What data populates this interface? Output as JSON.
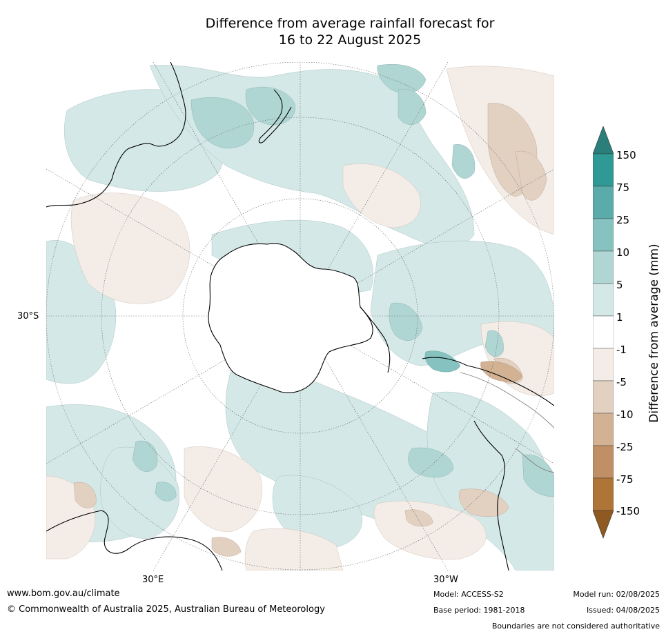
{
  "title": {
    "line1": "Difference from average rainfall forecast for",
    "line2": "16 to 22 August 2025"
  },
  "map": {
    "projection": "south-polar-stereographic",
    "labels": {
      "lat_30s": "30°S",
      "lon_30e": "30°E",
      "lon_30w": "30°W"
    }
  },
  "legend": {
    "title": "Difference from average (mm)",
    "extend": "both",
    "ticks": [
      "150",
      "75",
      "25",
      "10",
      "5",
      "1",
      "-1",
      "-5",
      "-10",
      "-25",
      "-75",
      "-150"
    ],
    "colors": {
      "over": "#2a7f7a",
      "gt150": "#2f9a95",
      "75_150": "#5aabaa",
      "25_75": "#86c3c0",
      "10_25": "#b0d6d4",
      "5_10": "#d4e8e7",
      "1_5": "#ffffff",
      "n1_1": "#f3ece7",
      "n5_n1": "#e2d0c1",
      "n10_n5": "#d2b293",
      "n25_n10": "#bf8f65",
      "n75_n25": "#ae7438",
      "under": "#8f5a22"
    }
  },
  "footer": {
    "website": "www.bom.gov.au/climate",
    "copyright": "© Commonwealth of Australia 2025, Australian Bureau of Meteorology",
    "model": "Model: ACCESS-S2",
    "base_period": "Base period: 1981-2018",
    "model_run": "Model run: 02/08/2025",
    "issued": "Issued: 04/08/2025",
    "disclaimer": "Boundaries are not considered authoritative"
  }
}
